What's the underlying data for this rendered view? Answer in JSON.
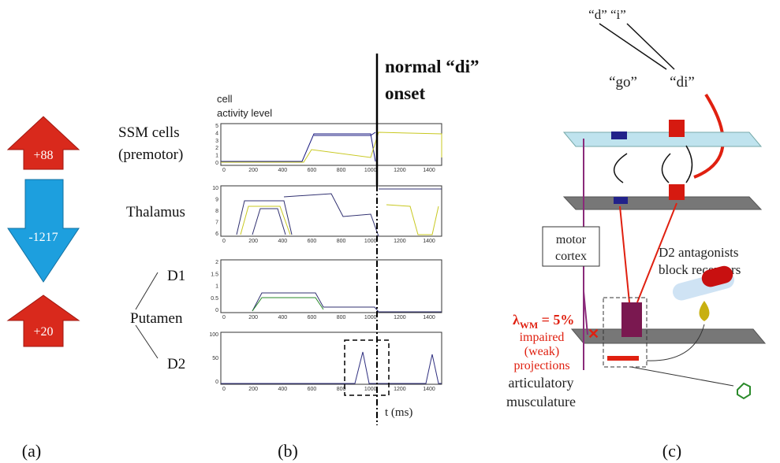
{
  "panel_a": {
    "arrows": [
      {
        "label": "+88"
      },
      {
        "label": "-1217"
      },
      {
        "label": "+20"
      }
    ]
  },
  "panel_b": {
    "axis_title": [
      "cell",
      "activity level"
    ],
    "onset": [
      "normal “di”",
      "onset"
    ],
    "ssm": [
      "SSM cells",
      "(premotor)"
    ],
    "thalamus": "Thalamus",
    "d1": "D1",
    "putamen": "Putamen",
    "d2": "D2",
    "x_axis": "t (ms)",
    "x_ticks": [
      "0",
      "200",
      "400",
      "600",
      "800",
      "1000",
      "1200",
      "1400"
    ],
    "plots": [
      {
        "y_ticks": [
          "5",
          "4",
          "3",
          "2",
          "1",
          "0"
        ]
      },
      {
        "y_ticks": [
          "10",
          "9",
          "8",
          "7",
          "6"
        ]
      },
      {
        "y_ticks": [
          "2",
          "1.5",
          "1",
          "0.5",
          "0"
        ]
      },
      {
        "y_ticks": [
          "100",
          "50",
          "0"
        ]
      }
    ]
  },
  "panel_c": {
    "inputs": "“d” “i”",
    "go": "“go”",
    "di": "“di”",
    "motor_cortex": [
      "motor",
      "cortex"
    ],
    "d2_antagonists": [
      "D2 antagonists",
      "block receptors"
    ],
    "lambda": [
      "λ",
      "WM",
      " = 5%"
    ],
    "impaired": [
      "impaired",
      "(weak)",
      "projections"
    ],
    "output": [
      "articulatory",
      "musculature"
    ]
  },
  "captions": [
    "(a)",
    "(b)",
    "(c)"
  ]
}
